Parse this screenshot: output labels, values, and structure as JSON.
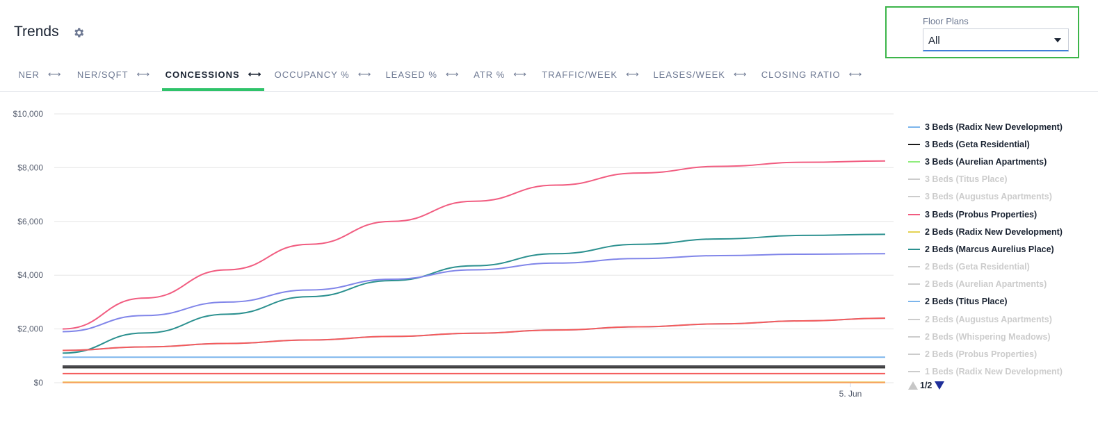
{
  "header": {
    "title": "Trends",
    "settings_icon": "gear-icon"
  },
  "filter": {
    "label": "Floor Plans",
    "value": "All"
  },
  "tabs": [
    {
      "label": "NER",
      "arrows": "⟷"
    },
    {
      "label": "NER/SQFT",
      "arrows": "⟷"
    },
    {
      "label": "CONCESSIONS",
      "arrows": "⟷"
    },
    {
      "label": "OCCUPANCY %",
      "arrows": "⟷"
    },
    {
      "label": "LEASED %",
      "arrows": "⟷"
    },
    {
      "label": "ATR %",
      "arrows": "⟷"
    },
    {
      "label": "TRAFFIC/WEEK",
      "arrows": "⟷"
    },
    {
      "label": "LEASES/WEEK",
      "arrows": "⟷"
    },
    {
      "label": "CLOSING RATIO",
      "arrows": "⟷"
    }
  ],
  "active_tab": 2,
  "chart_data": {
    "type": "line",
    "ylim": [
      0,
      10000
    ],
    "y_ticks": [
      "$0",
      "$2,000",
      "$4,000",
      "$6,000",
      "$8,000",
      "$10,000"
    ],
    "x_ticks": [
      "5. Jun"
    ],
    "grid": true,
    "legend_position": "right",
    "legend": {
      "items": [
        {
          "name": "3 Beds (Radix New Development)",
          "color": "#7cb5ec",
          "visible": true
        },
        {
          "name": "3 Beds (Geta Residential)",
          "color": "#1b1b1b",
          "visible": true
        },
        {
          "name": "3 Beds (Aurelian Apartments)",
          "color": "#90ed7d",
          "visible": true
        },
        {
          "name": "3 Beds (Titus Place)",
          "color": "#cccccc",
          "visible": false
        },
        {
          "name": "3 Beds (Augustus Apartments)",
          "color": "#cccccc",
          "visible": false
        },
        {
          "name": "3 Beds (Probus Properties)",
          "color": "#f15c80",
          "visible": true
        },
        {
          "name": "2 Beds (Radix New Development)",
          "color": "#e4d354",
          "visible": true
        },
        {
          "name": "2 Beds (Marcus Aurelius Place)",
          "color": "#2b908f",
          "visible": true
        },
        {
          "name": "2 Beds (Geta Residential)",
          "color": "#cccccc",
          "visible": false
        },
        {
          "name": "2 Beds (Aurelian Apartments)",
          "color": "#cccccc",
          "visible": false
        },
        {
          "name": "2 Beds (Titus Place)",
          "color": "#7cb5ec",
          "visible": true
        },
        {
          "name": "2 Beds (Augustus Apartments)",
          "color": "#cccccc",
          "visible": false
        },
        {
          "name": "2 Beds (Whispering Meadows)",
          "color": "#cccccc",
          "visible": false
        },
        {
          "name": "2 Beds (Probus Properties)",
          "color": "#cccccc",
          "visible": false
        },
        {
          "name": "1 Beds (Radix New Development)",
          "color": "#cccccc",
          "visible": false
        }
      ],
      "page": "1/2"
    },
    "x": [
      0,
      1,
      2,
      3,
      4,
      5,
      6,
      7,
      8,
      9,
      10
    ],
    "series": [
      {
        "color": "#f15c80",
        "values": [
          2000,
          3150,
          4200,
          5150,
          6000,
          6750,
          7350,
          7800,
          8050,
          8200,
          8250
        ]
      },
      {
        "color": "#2b908f",
        "values": [
          1100,
          1850,
          2550,
          3200,
          3800,
          4350,
          4800,
          5150,
          5350,
          5480,
          5520
        ]
      },
      {
        "color": "#8085e9",
        "values": [
          1900,
          2500,
          3000,
          3450,
          3850,
          4200,
          4450,
          4620,
          4730,
          4780,
          4800
        ]
      },
      {
        "color": "#7cb5ec",
        "values": [
          1200,
          1330,
          1460,
          1590,
          1720,
          1840,
          1960,
          2080,
          2190,
          2300,
          2400
        ]
      },
      {
        "color": "#f45b5b",
        "values": [
          1200,
          1330,
          1460,
          1590,
          1720,
          1840,
          1960,
          2080,
          2190,
          2300,
          2400
        ]
      },
      {
        "color": "#7cb5ec",
        "values": [
          950,
          950,
          950,
          950,
          950,
          950,
          950,
          950,
          950,
          950,
          950
        ]
      },
      {
        "color": "#434348",
        "values": [
          620,
          620,
          620,
          620,
          620,
          620,
          620,
          620,
          620,
          620,
          620
        ]
      },
      {
        "color": "#1b1b1b",
        "values": [
          560,
          560,
          560,
          560,
          560,
          560,
          560,
          560,
          560,
          560,
          560
        ]
      },
      {
        "color": "#f45b5b",
        "values": [
          340,
          340,
          340,
          340,
          340,
          340,
          340,
          340,
          340,
          340,
          340
        ]
      },
      {
        "color": "#e4d354",
        "values": [
          20,
          20,
          20,
          20,
          20,
          20,
          20,
          20,
          20,
          20,
          20
        ]
      },
      {
        "color": "#f7a35c",
        "values": [
          5,
          5,
          5,
          5,
          5,
          5,
          5,
          5,
          5,
          5,
          5
        ]
      }
    ]
  }
}
